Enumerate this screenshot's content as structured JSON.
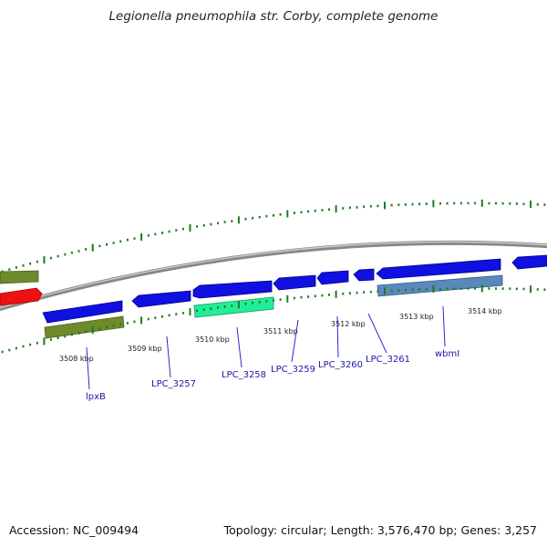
{
  "title": "Legionella pneumophila str. Corby, complete genome",
  "footer": {
    "accession": "Accession: NC_009494",
    "summary": "Topology: circular; Length: 3,576,470 bp; Genes: 3,257"
  },
  "colors": {
    "cds_blue": "#1010e0",
    "olive": "#6f8a2a",
    "red": "#ee1111",
    "green": "#22ee99",
    "steel": "#5a88bb",
    "backbone": "#888888",
    "tick_green": "#1f7a1f",
    "label_blue": "#1a1aa6"
  },
  "tick_labels": [
    "3508 kbp",
    "3509 kbp",
    "3510 kbp",
    "3511 kbp",
    "3512 kbp",
    "3513 kbp",
    "3514 kbp"
  ],
  "gene_labels": [
    "lpxB",
    "LPC_3257",
    "LPC_3258",
    "LPC_3259",
    "LPC_3260",
    "LPC_3261",
    "wbmI"
  ]
}
